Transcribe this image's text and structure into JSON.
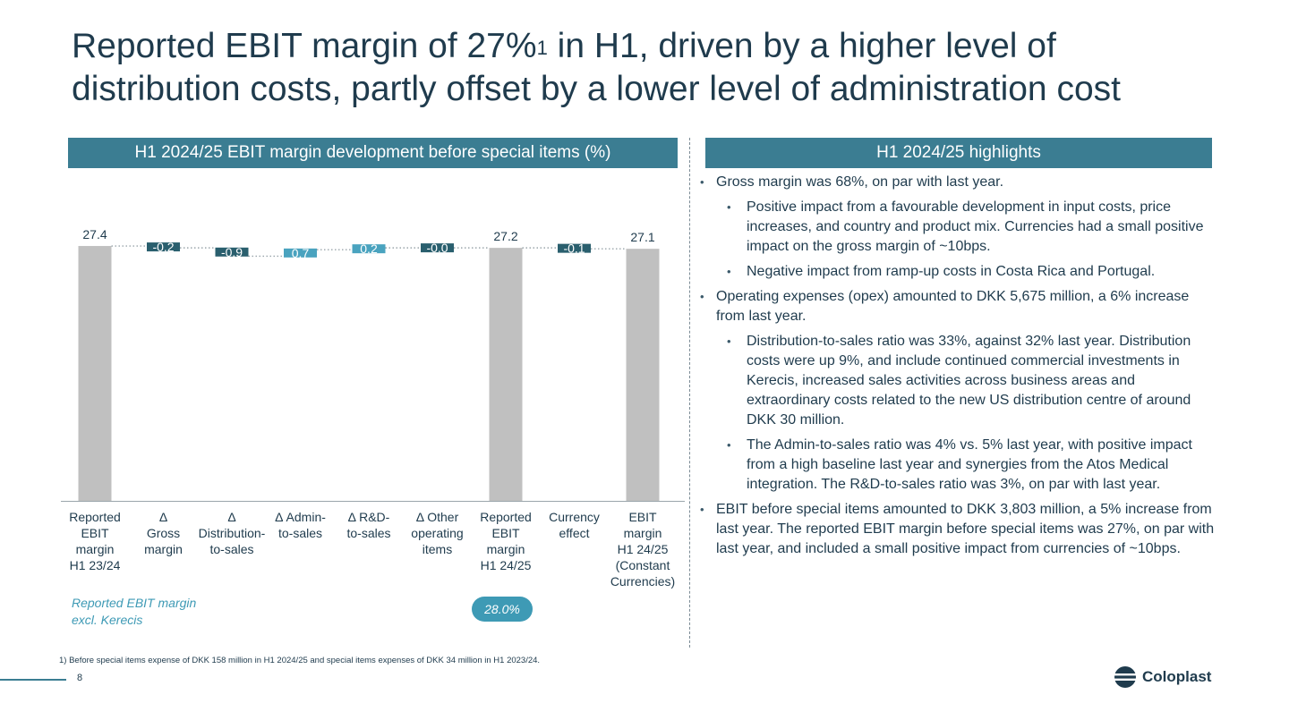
{
  "title": {
    "part1": "Reported EBIT margin of 27%",
    "sup": "1",
    "part2": " in H1, driven by a higher level of distribution costs, partly offset by a lower level of administration cost"
  },
  "left_banner": "H1 2024/25 EBIT margin development before special items (%)",
  "right_banner": "H1 2024/25 highlights",
  "colors": {
    "banner": "#3b7d92",
    "total_bar": "#c0c0c0",
    "negative_bar": "#2a5f6e",
    "positive_bar": "#4aa3bf",
    "note": "#3e9ab5"
  },
  "chart_data": {
    "type": "bar",
    "subtype": "waterfall",
    "title": "H1 2024/25 EBIT margin development before special items (%)",
    "categories": [
      [
        "Reported",
        "EBIT",
        "margin",
        "H1 23/24"
      ],
      [
        "Δ",
        "Gross",
        "margin"
      ],
      [
        "Δ",
        "Distribution-",
        "to-sales"
      ],
      [
        "Δ Admin-",
        "to-sales"
      ],
      [
        "Δ R&D-",
        "to-sales"
      ],
      [
        "Δ Other",
        "operating",
        "items"
      ],
      [
        "Reported",
        "EBIT",
        "margin",
        "H1 24/25"
      ],
      [
        "Currency",
        "effect"
      ],
      [
        "EBIT",
        "margin",
        "H1 24/25",
        "(Constant",
        "Currencies)"
      ]
    ],
    "values": [
      27.4,
      -0.2,
      -0.9,
      0.7,
      0.2,
      0.0,
      27.2,
      -0.1,
      27.1
    ],
    "labels": [
      "27.4",
      "-0.2",
      "-0.9",
      "0.7",
      "0.2",
      "-0.0",
      "27.2",
      "-0.1",
      "27.1"
    ],
    "kinds": [
      "total",
      "delta",
      "delta",
      "delta",
      "delta",
      "delta",
      "total",
      "delta",
      "total"
    ],
    "grid": false,
    "legend": "none"
  },
  "note": {
    "label": "Reported EBIT margin excl. Kerecis",
    "value": "28.0%"
  },
  "highlights": [
    {
      "level": 1,
      "text": "Gross margin was 68%, on par with last year."
    },
    {
      "level": 2,
      "text": "Positive impact from a favourable development in input costs, price increases, and country and product mix. Currencies had a small positive impact on the gross margin of ~10bps."
    },
    {
      "level": 2,
      "text": "Negative impact from ramp-up costs in Costa Rica and Portugal."
    },
    {
      "level": 1,
      "text": "Operating expenses (opex) amounted to DKK 5,675 million, a 6% increase from last year."
    },
    {
      "level": 2,
      "text": "Distribution-to-sales ratio was 33%, against 32% last year. Distribution costs were up 9%, and include continued commercial investments in Kerecis, increased sales activities across business areas and extraordinary costs related to the new US distribution centre of around DKK 30 million."
    },
    {
      "level": 2,
      "text": "The Admin-to-sales ratio was 4% vs. 5% last year, with positive impact from a high baseline last year and synergies from the Atos Medical integration. The R&D-to-sales ratio was 3%, on par with last year."
    },
    {
      "level": 1,
      "text": "EBIT before special items amounted to DKK 3,803 million, a 5% increase from last year. The reported EBIT margin before special items was 27%, on par with last year, and included a small positive impact from currencies of ~10bps."
    }
  ],
  "bullet_char": "•",
  "footnote": "1) Before special items expense of DKK 158 million in H1 2024/25 and special items expenses of DKK 34 million in H1 2023/24.",
  "page_number": "8",
  "logo": {
    "text": "Coloplast",
    "icon": "coloplast-logo-icon"
  }
}
